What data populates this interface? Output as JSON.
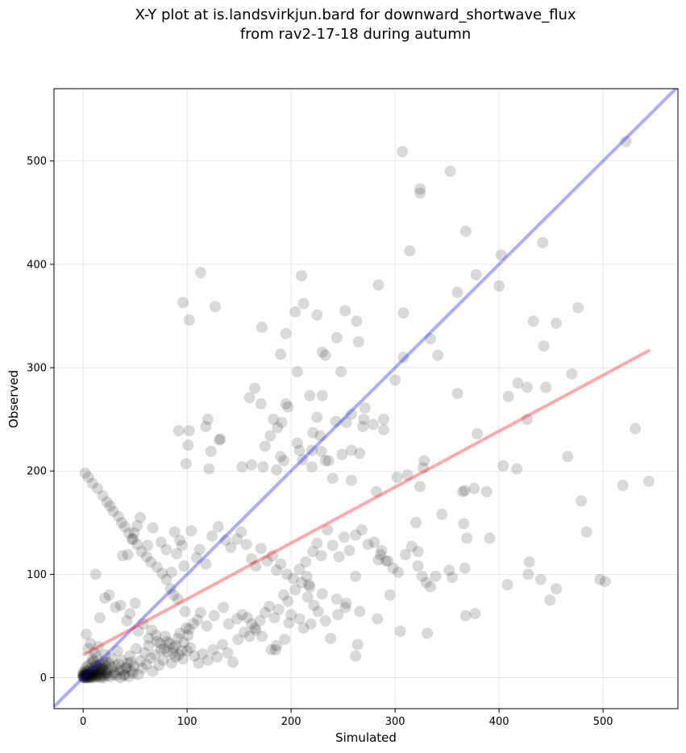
{
  "chart_data": {
    "type": "scatter",
    "title_line1": "X-Y plot at is.landsvirkjun.bard for downward_shortwave_flux",
    "title_line2": "from rav2-17-18 during autumn",
    "xlabel": "Simulated",
    "ylabel": "Observed",
    "xlim": [
      -28,
      572
    ],
    "ylim": [
      -30,
      570
    ],
    "xticks": [
      0,
      100,
      200,
      300,
      400,
      500
    ],
    "yticks": [
      0,
      100,
      200,
      300,
      400,
      500
    ],
    "grid": true,
    "point_color": "#000000",
    "point_opacity": 0.15,
    "identity_line": {
      "color": "#0000ff",
      "opacity": 0.32,
      "x": [
        -28,
        572
      ],
      "y": [
        -28,
        572
      ]
    },
    "fit_line": {
      "color": "#ff0000",
      "opacity": 0.33,
      "x": [
        0,
        545
      ],
      "y": [
        22,
        317
      ]
    },
    "points": [
      [
        307,
        509
      ],
      [
        522,
        519
      ],
      [
        353,
        490
      ],
      [
        324,
        473
      ],
      [
        324,
        469
      ],
      [
        368,
        432
      ],
      [
        442,
        421
      ],
      [
        314,
        413
      ],
      [
        402,
        409
      ],
      [
        113,
        392
      ],
      [
        210,
        389
      ],
      [
        378,
        390
      ],
      [
        400,
        379
      ],
      [
        284,
        380
      ],
      [
        360,
        373
      ],
      [
        96,
        363
      ],
      [
        212,
        362
      ],
      [
        127,
        359
      ],
      [
        476,
        358
      ],
      [
        252,
        355
      ],
      [
        308,
        353
      ],
      [
        204,
        354
      ],
      [
        225,
        351
      ],
      [
        102,
        346
      ],
      [
        263,
        345
      ],
      [
        433,
        345
      ],
      [
        455,
        343
      ],
      [
        172,
        339
      ],
      [
        195,
        333
      ],
      [
        334,
        328
      ],
      [
        265,
        325
      ],
      [
        244,
        329
      ],
      [
        443,
        321
      ],
      [
        230,
        315
      ],
      [
        233,
        312
      ],
      [
        341,
        312
      ],
      [
        190,
        313
      ],
      [
        308,
        310
      ],
      [
        300,
        288
      ],
      [
        206,
        296
      ],
      [
        248,
        296
      ],
      [
        218,
        273
      ],
      [
        160,
        271
      ],
      [
        165,
        280
      ],
      [
        230,
        273
      ],
      [
        120,
        250
      ],
      [
        171,
        265
      ],
      [
        225,
        252
      ],
      [
        243,
        248
      ],
      [
        258,
        255
      ],
      [
        271,
        261
      ],
      [
        270,
        250
      ],
      [
        289,
        240
      ],
      [
        289,
        250
      ],
      [
        269,
        243
      ],
      [
        279,
        245
      ],
      [
        229,
        219
      ],
      [
        228,
        234
      ],
      [
        249,
        216
      ],
      [
        266,
        217
      ],
      [
        253,
        247
      ],
      [
        208,
        220
      ],
      [
        220,
        220
      ],
      [
        233,
        210
      ],
      [
        183,
        250
      ],
      [
        195,
        265
      ],
      [
        197,
        262
      ],
      [
        92,
        239
      ],
      [
        102,
        239
      ],
      [
        99,
        207
      ],
      [
        101,
        225
      ],
      [
        118,
        243
      ],
      [
        131,
        230
      ],
      [
        132,
        231
      ],
      [
        123,
        219
      ],
      [
        121,
        202
      ],
      [
        153,
        204
      ],
      [
        162,
        206
      ],
      [
        180,
        234
      ],
      [
        187,
        242
      ],
      [
        191,
        247
      ],
      [
        175,
        224
      ],
      [
        186,
        201
      ],
      [
        206,
        227
      ],
      [
        221,
        237
      ],
      [
        190,
        214
      ],
      [
        193,
        210
      ],
      [
        173,
        204
      ],
      [
        211,
        211
      ],
      [
        220,
        204
      ],
      [
        240,
        193
      ],
      [
        236,
        210
      ],
      [
        258,
        191
      ],
      [
        258,
        220
      ],
      [
        302,
        194
      ],
      [
        312,
        196
      ],
      [
        282,
        180
      ],
      [
        327,
        203
      ],
      [
        328,
        210
      ],
      [
        324,
        185
      ],
      [
        345,
        158
      ],
      [
        365,
        180
      ],
      [
        379,
        236
      ],
      [
        388,
        180
      ],
      [
        427,
        250
      ],
      [
        427,
        281
      ],
      [
        466,
        214
      ],
      [
        470,
        294
      ],
      [
        445,
        281
      ],
      [
        418,
        285
      ],
      [
        417,
        202
      ],
      [
        404,
        205
      ],
      [
        409,
        272
      ],
      [
        367,
        181
      ],
      [
        360,
        275
      ],
      [
        376,
        183
      ],
      [
        366,
        149
      ],
      [
        369,
        135
      ],
      [
        377,
        62
      ],
      [
        368,
        60
      ],
      [
        391,
        135
      ],
      [
        408,
        90
      ],
      [
        428,
        100
      ],
      [
        429,
        112
      ],
      [
        440,
        95
      ],
      [
        455,
        86
      ],
      [
        449,
        75
      ],
      [
        479,
        171
      ],
      [
        484,
        141
      ],
      [
        497,
        95
      ],
      [
        502,
        93
      ],
      [
        519,
        186
      ],
      [
        531,
        241
      ],
      [
        544,
        190
      ],
      [
        284,
        114
      ],
      [
        287,
        123
      ],
      [
        291,
        113
      ],
      [
        295,
        80
      ],
      [
        320,
        150
      ],
      [
        322,
        122
      ],
      [
        326,
        98
      ],
      [
        352,
        104
      ],
      [
        355,
        97
      ],
      [
        367,
        106
      ],
      [
        339,
        98
      ],
      [
        331,
        43
      ],
      [
        305,
        45
      ],
      [
        283,
        57
      ],
      [
        266,
        64
      ],
      [
        264,
        32
      ],
      [
        262,
        21
      ],
      [
        262,
        98
      ],
      [
        245,
        61
      ],
      [
        252,
        68
      ],
      [
        244,
        76
      ],
      [
        253,
        72
      ],
      [
        238,
        38
      ],
      [
        233,
        55
      ],
      [
        230,
        81
      ],
      [
        226,
        64
      ],
      [
        222,
        70
      ],
      [
        219,
        52
      ],
      [
        216,
        78
      ],
      [
        217,
        90
      ],
      [
        212,
        48
      ],
      [
        208,
        57
      ],
      [
        200,
        61
      ],
      [
        198,
        53
      ],
      [
        194,
        37
      ],
      [
        186,
        31
      ],
      [
        185,
        27
      ],
      [
        181,
        27
      ],
      [
        172,
        40
      ],
      [
        166,
        46
      ],
      [
        162,
        52
      ],
      [
        158,
        58
      ],
      [
        153,
        61
      ],
      [
        148,
        57
      ],
      [
        140,
        52
      ],
      [
        135,
        68
      ],
      [
        126,
        60
      ],
      [
        119,
        50
      ],
      [
        113,
        63
      ],
      [
        110,
        56
      ],
      [
        106,
        52
      ],
      [
        102,
        47
      ],
      [
        98,
        64
      ],
      [
        91,
        76
      ],
      [
        87,
        80
      ],
      [
        84,
        86
      ],
      [
        80,
        95
      ],
      [
        76,
        101
      ],
      [
        71,
        107
      ],
      [
        65,
        112
      ],
      [
        61,
        117
      ],
      [
        56,
        122
      ],
      [
        52,
        129
      ],
      [
        48,
        134
      ],
      [
        44,
        140
      ],
      [
        40,
        146
      ],
      [
        37,
        150
      ],
      [
        34,
        156
      ],
      [
        29,
        161
      ],
      [
        26,
        166
      ],
      [
        23,
        170
      ],
      [
        19,
        176
      ],
      [
        14,
        183
      ],
      [
        9,
        188
      ],
      [
        5,
        194
      ],
      [
        2,
        198
      ],
      [
        38,
        118
      ],
      [
        47,
        134
      ],
      [
        52,
        147
      ],
      [
        43,
        119
      ],
      [
        49,
        140
      ],
      [
        55,
        155
      ],
      [
        62,
        128
      ],
      [
        67,
        145
      ],
      [
        75,
        131
      ],
      [
        80,
        124
      ],
      [
        88,
        141
      ],
      [
        93,
        133
      ],
      [
        85,
        102
      ],
      [
        90,
        120
      ],
      [
        95,
        128
      ],
      [
        97,
        108
      ],
      [
        104,
        142
      ],
      [
        109,
        116
      ],
      [
        112,
        124
      ],
      [
        118,
        110
      ],
      [
        124,
        137
      ],
      [
        130,
        146
      ],
      [
        137,
        133
      ],
      [
        142,
        126
      ],
      [
        148,
        134
      ],
      [
        152,
        141
      ],
      [
        157,
        129
      ],
      [
        162,
        115
      ],
      [
        166,
        108
      ],
      [
        171,
        125
      ],
      [
        177,
        113
      ],
      [
        182,
        118
      ],
      [
        186,
        104
      ],
      [
        190,
        110
      ],
      [
        196,
        100
      ],
      [
        202,
        96
      ],
      [
        208,
        105
      ],
      [
        214,
        112
      ],
      [
        218,
        88
      ],
      [
        221,
        122
      ],
      [
        225,
        130
      ],
      [
        229,
        118
      ],
      [
        235,
        143
      ],
      [
        240,
        128
      ],
      [
        246,
        117
      ],
      [
        251,
        136
      ],
      [
        256,
        123
      ],
      [
        262,
        138
      ],
      [
        268,
        143
      ],
      [
        274,
        129
      ],
      [
        280,
        131
      ],
      [
        286,
        119
      ],
      [
        293,
        113
      ],
      [
        298,
        106
      ],
      [
        303,
        102
      ],
      [
        310,
        119
      ],
      [
        316,
        127
      ],
      [
        322,
        108
      ],
      [
        330,
        92
      ],
      [
        334,
        88
      ],
      [
        12,
        100
      ],
      [
        16,
        58
      ],
      [
        21,
        77
      ],
      [
        25,
        80
      ],
      [
        31,
        68
      ],
      [
        36,
        70
      ],
      [
        42,
        55
      ],
      [
        45,
        62
      ],
      [
        50,
        72
      ],
      [
        53,
        45
      ],
      [
        58,
        52
      ],
      [
        63,
        38
      ],
      [
        66,
        46
      ],
      [
        70,
        41
      ],
      [
        74,
        33
      ],
      [
        78,
        28
      ],
      [
        81,
        35
      ],
      [
        86,
        24
      ],
      [
        89,
        31
      ],
      [
        92,
        22
      ],
      [
        96,
        18
      ],
      [
        100,
        26
      ],
      [
        103,
        29
      ],
      [
        107,
        21
      ],
      [
        111,
        14
      ],
      [
        115,
        23
      ],
      [
        120,
        17
      ],
      [
        125,
        27
      ],
      [
        129,
        20
      ],
      [
        134,
        32
      ],
      [
        139,
        24
      ],
      [
        144,
        15
      ],
      [
        149,
        37
      ],
      [
        155,
        44
      ],
      [
        160,
        40
      ],
      [
        165,
        48
      ],
      [
        170,
        55
      ],
      [
        175,
        63
      ],
      [
        179,
        69
      ],
      [
        184,
        58
      ],
      [
        188,
        66
      ],
      [
        193,
        80
      ],
      [
        197,
        74
      ],
      [
        204,
        85
      ],
      [
        210,
        92
      ],
      [
        215,
        98
      ],
      [
        3,
        42
      ],
      [
        5,
        28
      ],
      [
        7,
        33
      ],
      [
        9,
        18
      ],
      [
        11,
        24
      ],
      [
        13,
        12
      ],
      [
        15,
        30
      ],
      [
        17,
        8
      ],
      [
        19,
        15
      ],
      [
        21,
        22
      ],
      [
        23,
        5
      ],
      [
        25,
        14
      ],
      [
        27,
        19
      ],
      [
        29,
        3
      ],
      [
        31,
        11
      ],
      [
        33,
        26
      ],
      [
        35,
        7
      ],
      [
        37,
        17
      ],
      [
        39,
        2
      ],
      [
        41,
        9
      ],
      [
        43,
        14
      ],
      [
        45,
        21
      ],
      [
        47,
        6
      ],
      [
        49,
        11
      ],
      [
        51,
        28
      ],
      [
        53,
        3
      ],
      [
        55,
        16
      ],
      [
        57,
        9
      ],
      [
        59,
        24
      ],
      [
        61,
        13
      ],
      [
        63,
        31
      ],
      [
        65,
        19
      ],
      [
        67,
        6
      ],
      [
        69,
        22
      ],
      [
        71,
        35
      ],
      [
        73,
        12
      ],
      [
        75,
        27
      ],
      [
        77,
        17
      ],
      [
        79,
        40
      ],
      [
        81,
        25
      ],
      [
        83,
        33
      ],
      [
        85,
        14
      ],
      [
        87,
        29
      ],
      [
        89,
        20
      ],
      [
        91,
        38
      ],
      [
        93,
        43
      ],
      [
        95,
        26
      ],
      [
        97,
        34
      ],
      [
        99,
        48
      ],
      [
        101,
        41
      ],
      [
        0,
        0
      ],
      [
        0,
        2
      ],
      [
        1,
        1
      ],
      [
        1,
        4
      ],
      [
        2,
        0
      ],
      [
        2,
        7
      ],
      [
        3,
        3
      ],
      [
        3,
        10
      ],
      [
        4,
        1
      ],
      [
        4,
        6
      ],
      [
        5,
        0
      ],
      [
        5,
        12
      ],
      [
        6,
        4
      ],
      [
        6,
        2
      ],
      [
        7,
        8
      ],
      [
        7,
        0
      ],
      [
        8,
        14
      ],
      [
        8,
        5
      ],
      [
        9,
        3
      ],
      [
        9,
        1
      ],
      [
        10,
        9
      ],
      [
        10,
        16
      ],
      [
        11,
        6
      ],
      [
        11,
        2
      ],
      [
        12,
        11
      ],
      [
        12,
        4
      ],
      [
        13,
        20
      ],
      [
        13,
        1
      ],
      [
        14,
        7
      ],
      [
        15,
        3
      ],
      [
        16,
        13
      ],
      [
        17,
        0
      ],
      [
        18,
        6
      ],
      [
        19,
        9
      ],
      [
        20,
        2
      ],
      [
        21,
        12
      ],
      [
        22,
        4
      ],
      [
        24,
        8
      ],
      [
        26,
        1
      ],
      [
        28,
        10
      ],
      [
        30,
        5
      ],
      [
        32,
        2
      ],
      [
        34,
        13
      ],
      [
        36,
        0
      ],
      [
        38,
        7
      ],
      [
        40,
        3
      ],
      [
        42,
        10
      ],
      [
        44,
        1
      ],
      [
        46,
        15
      ],
      [
        48,
        4
      ],
      [
        0,
        1
      ],
      [
        0,
        3
      ],
      [
        0,
        5
      ],
      [
        1,
        0
      ],
      [
        1,
        2
      ],
      [
        2,
        1
      ],
      [
        2,
        3
      ],
      [
        3,
        0
      ],
      [
        3,
        5
      ],
      [
        4,
        2
      ],
      [
        4,
        0
      ],
      [
        5,
        3
      ],
      [
        6,
        1
      ],
      [
        7,
        2
      ],
      [
        8,
        0
      ],
      [
        9,
        6
      ],
      [
        10,
        3
      ],
      [
        11,
        0
      ],
      [
        12,
        7
      ],
      [
        13,
        2
      ],
      [
        14,
        10
      ],
      [
        15,
        5
      ],
      [
        16,
        1
      ],
      [
        17,
        9
      ],
      [
        18,
        3
      ],
      [
        19,
        12
      ],
      [
        20,
        0
      ],
      [
        21,
        6
      ],
      [
        22,
        15
      ],
      [
        23,
        2
      ]
    ]
  }
}
